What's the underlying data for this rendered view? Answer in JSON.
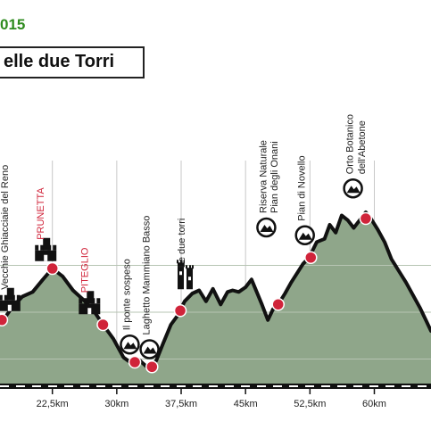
{
  "header": {
    "year_fragment": "015",
    "title_fragment": "elle due Torri"
  },
  "colors": {
    "fill": "#8fa68a",
    "line": "#111111",
    "marker": "#d0243a",
    "place_label": "#d0243a",
    "grid": "#c8c8c8",
    "header_green": "#2e8b1e"
  },
  "chart_data": {
    "type": "area",
    "xlabel": "",
    "ylabel": "",
    "xlim": [
      16.4,
      66.6
    ],
    "ylim": [
      0,
      100
    ],
    "grid": true,
    "x_ticks": [
      {
        "value": 22.5,
        "label": "22,5km"
      },
      {
        "value": 30,
        "label": "30km"
      },
      {
        "value": 37.5,
        "label": "37,5km"
      },
      {
        "value": 45,
        "label": "45km"
      },
      {
        "value": 52.5,
        "label": "52,5km"
      },
      {
        "value": 60,
        "label": "60km"
      }
    ],
    "y_gridlines": [
      10,
      40,
      70
    ],
    "profile_x": [
      16.4,
      16.9,
      17.8,
      19.0,
      20.2,
      21.4,
      22.5,
      23.7,
      24.9,
      26.1,
      27.3,
      28.4,
      29.6,
      30.8,
      31.8,
      32.5,
      33.1,
      33.7,
      34.6,
      35.4,
      36.3,
      37.1,
      37.9,
      38.8,
      39.6,
      40.4,
      41.2,
      42.1,
      42.9,
      43.5,
      44.2,
      45.0,
      45.7,
      46.3,
      46.9,
      47.6,
      48.2,
      48.8,
      49.6,
      50.3,
      51.0,
      51.7,
      52.4,
      53.3,
      54.2,
      54.8,
      55.5,
      56.2,
      56.9,
      57.6,
      58.3,
      59.0,
      59.6,
      60.4,
      61.2,
      62.0,
      62.9,
      63.7,
      64.5,
      65.3,
      66.0,
      66.6
    ],
    "profile_y": [
      35,
      36,
      43,
      50,
      53,
      61,
      68,
      63,
      54,
      48,
      41,
      32,
      23,
      11,
      7,
      10,
      7,
      4,
      9,
      20,
      32,
      38,
      47,
      52,
      54,
      47,
      55,
      45,
      53,
      54,
      53,
      56,
      61,
      53,
      45,
      35,
      42,
      45,
      52,
      59,
      65,
      71,
      75,
      85,
      87,
      96,
      91,
      102,
      99,
      94,
      99,
      104,
      100,
      93,
      85,
      74,
      66,
      59,
      51,
      43,
      35,
      28
    ],
    "markers": [
      {
        "x": 16.6,
        "y": 35
      },
      {
        "x": 22.5,
        "y": 68
      },
      {
        "x": 28.4,
        "y": 32
      },
      {
        "x": 32.1,
        "y": 8
      },
      {
        "x": 34.1,
        "y": 5
      },
      {
        "x": 37.4,
        "y": 41
      },
      {
        "x": 48.8,
        "y": 45
      },
      {
        "x": 52.6,
        "y": 75
      },
      {
        "x": 59.0,
        "y": 100
      }
    ],
    "annotations": [
      {
        "text": "Vecchie Ghiacciaie del Reno",
        "kind": "poi",
        "x": 16.9,
        "y": 51,
        "icon": "castle-icon"
      },
      {
        "text": "PRUNETTA",
        "kind": "place",
        "x": 21.1,
        "y": 83,
        "icon": "castle-icon"
      },
      {
        "text": "PITEGLIO",
        "kind": "place",
        "x": 26.2,
        "y": 49,
        "icon": "castle-icon"
      },
      {
        "text": "Il ponte sospeso",
        "kind": "poi",
        "x": 31.1,
        "y": 25,
        "icon": "mountain-icon"
      },
      {
        "text": "Laghetto Mammiano Basso",
        "kind": "poi",
        "x": 33.4,
        "y": 22,
        "icon": "mountain-icon"
      },
      {
        "text": "Le due torri",
        "kind": "poi",
        "x": 37.5,
        "y": 65,
        "icon": "tower-icon"
      },
      {
        "text": "Riserva Naturale",
        "kind": "poi",
        "x": 47.0,
        "y": 100,
        "icon": "mountain-icon"
      },
      {
        "text": "Pian degli Onani",
        "kind": "poi",
        "x": 48.3,
        "y": 100,
        "icon": ""
      },
      {
        "text": "Pian di Novello",
        "kind": "poi",
        "x": 51.5,
        "y": 95,
        "icon": "mountain-icon"
      },
      {
        "text": "Orto Botanico",
        "kind": "poi",
        "x": 57.1,
        "y": 125,
        "icon": "mountain-icon"
      },
      {
        "text": "dell'Abetone",
        "kind": "poi",
        "x": 58.5,
        "y": 125,
        "icon": ""
      }
    ]
  }
}
